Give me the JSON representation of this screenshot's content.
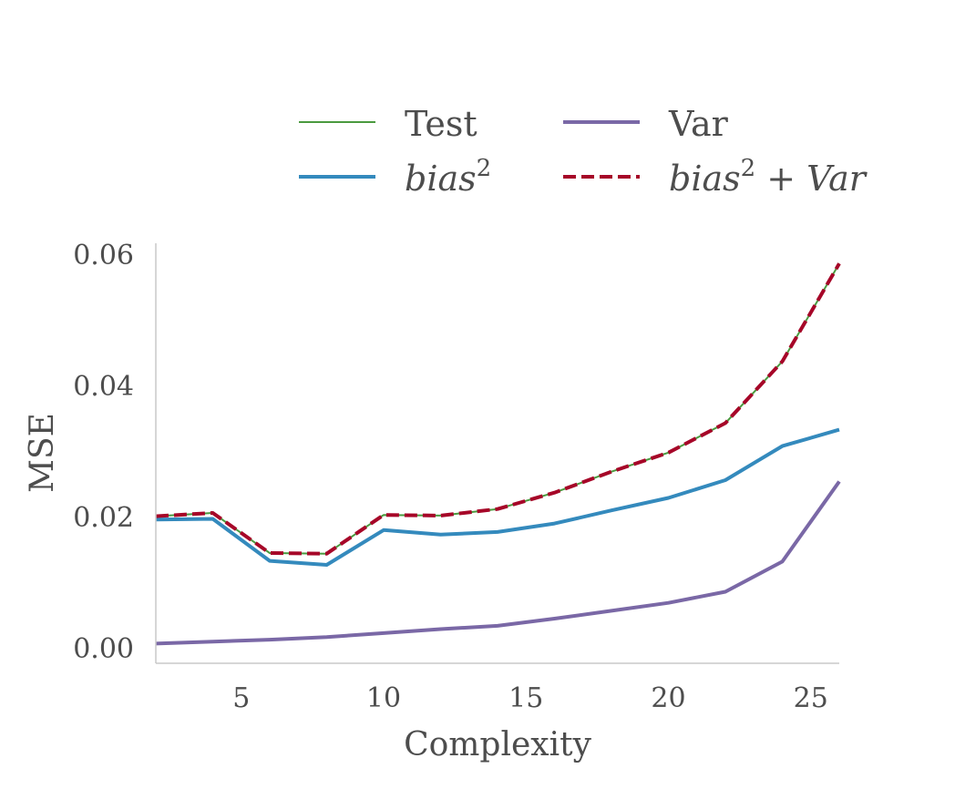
{
  "chart_data": {
    "type": "line",
    "xlabel": "Complexity",
    "ylabel": "MSE",
    "xlim": [
      2,
      26
    ],
    "ylim": [
      -0.0022,
      0.0618
    ],
    "x_ticks": [
      5,
      10,
      15,
      20,
      25
    ],
    "y_ticks": [
      0.0,
      0.02,
      0.04,
      0.06
    ],
    "y_tick_labels": [
      "0.00",
      "0.02",
      "0.04",
      "0.06"
    ],
    "grid": false,
    "legend_position": "top",
    "x": [
      2,
      4,
      6,
      8,
      10,
      12,
      14,
      16,
      18,
      20,
      22,
      24,
      26
    ],
    "series": [
      {
        "name": "Test",
        "legend_main": "Test",
        "legend_sup": "",
        "legend_rest": "",
        "color": "#4a9a3f",
        "style": "solid",
        "values": [
          0.0202,
          0.0207,
          0.0146,
          0.0145,
          0.0204,
          0.0203,
          0.0213,
          0.0238,
          0.027,
          0.0299,
          0.0344,
          0.0438,
          0.0587
        ]
      },
      {
        "name": "Var",
        "legend_main": "Var",
        "legend_sup": "",
        "legend_rest": "",
        "color": "#7a68a6",
        "style": "solid",
        "values": [
          0.0008,
          0.0011,
          0.0014,
          0.0018,
          0.0024,
          0.003,
          0.0035,
          0.0046,
          0.0058,
          0.007,
          0.0087,
          0.0133,
          0.0255
        ]
      },
      {
        "name": "bias2",
        "legend_main": "bias",
        "legend_sup": "2",
        "legend_rest": "",
        "color": "#348abd",
        "style": "solid",
        "values": [
          0.0197,
          0.0198,
          0.0134,
          0.0128,
          0.0181,
          0.0174,
          0.0178,
          0.0191,
          0.0211,
          0.023,
          0.0257,
          0.0309,
          0.0334
        ]
      },
      {
        "name": "bias2 + Var",
        "legend_main": "bias",
        "legend_sup": "2",
        "legend_rest": " + Var",
        "color": "#a60628",
        "style": "dashed",
        "values": [
          0.0202,
          0.0207,
          0.0146,
          0.0145,
          0.0204,
          0.0203,
          0.0213,
          0.0238,
          0.027,
          0.0299,
          0.0344,
          0.0438,
          0.0587
        ]
      }
    ]
  }
}
